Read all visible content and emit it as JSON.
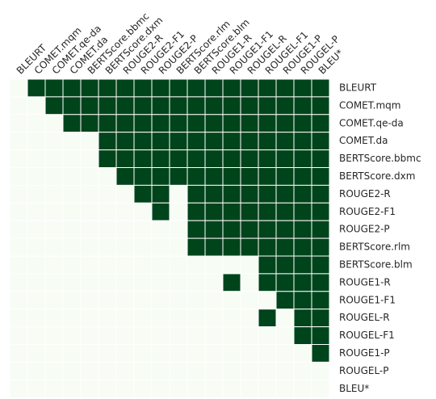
{
  "chart_data": {
    "type": "heatmap",
    "x_categories": [
      "BLEURT",
      "COMET.mqm",
      "COMET.qe-da",
      "COMET.da",
      "BERTScore.bbmc",
      "BERTScore.dxm",
      "ROUGE2-R",
      "ROUGE2-F1",
      "ROUGE2-P",
      "BERTScore.rlm",
      "BERTScore.blm",
      "ROUGE1-R",
      "ROUGE1-F1",
      "ROUGEL-R",
      "ROUGEL-F1",
      "ROUGE1-P",
      "ROUGEL-P",
      "BLEU*"
    ],
    "y_categories": [
      "BLEURT",
      "COMET.mqm",
      "COMET.qe-da",
      "COMET.da",
      "BERTScore.bbmc",
      "BERTScore.dxm",
      "ROUGE2-R",
      "ROUGE2-F1",
      "ROUGE2-P",
      "BERTScore.rlm",
      "BERTScore.blm",
      "ROUGE1-R",
      "ROUGE1-F1",
      "ROUGEL-R",
      "ROUGEL-F1",
      "ROUGE1-P",
      "ROUGEL-P",
      "BLEU*"
    ],
    "values": [
      [
        0,
        1,
        1,
        1,
        1,
        1,
        1,
        1,
        1,
        1,
        1,
        1,
        1,
        1,
        1,
        1,
        1,
        1
      ],
      [
        0,
        0,
        1,
        1,
        1,
        1,
        1,
        1,
        1,
        1,
        1,
        1,
        1,
        1,
        1,
        1,
        1,
        1
      ],
      [
        0,
        0,
        0,
        1,
        1,
        1,
        1,
        1,
        1,
        1,
        1,
        1,
        1,
        1,
        1,
        1,
        1,
        1
      ],
      [
        0,
        0,
        0,
        0,
        0,
        1,
        1,
        1,
        1,
        1,
        1,
        1,
        1,
        1,
        1,
        1,
        1,
        1
      ],
      [
        0,
        0,
        0,
        0,
        0,
        1,
        1,
        1,
        1,
        1,
        1,
        1,
        1,
        1,
        1,
        1,
        1,
        1
      ],
      [
        0,
        0,
        0,
        0,
        0,
        0,
        1,
        1,
        1,
        1,
        1,
        1,
        1,
        1,
        1,
        1,
        1,
        1
      ],
      [
        0,
        0,
        0,
        0,
        0,
        0,
        0,
        1,
        1,
        0,
        1,
        1,
        1,
        1,
        1,
        1,
        1,
        1
      ],
      [
        0,
        0,
        0,
        0,
        0,
        0,
        0,
        0,
        1,
        0,
        1,
        1,
        1,
        1,
        1,
        1,
        1,
        1
      ],
      [
        0,
        0,
        0,
        0,
        0,
        0,
        0,
        0,
        0,
        0,
        1,
        1,
        1,
        1,
        1,
        1,
        1,
        1
      ],
      [
        0,
        0,
        0,
        0,
        0,
        0,
        0,
        0,
        0,
        0,
        1,
        1,
        1,
        1,
        1,
        1,
        1,
        1
      ],
      [
        0,
        0,
        0,
        0,
        0,
        0,
        0,
        0,
        0,
        0,
        0,
        0,
        0,
        0,
        1,
        1,
        1,
        1
      ],
      [
        0,
        0,
        0,
        0,
        0,
        0,
        0,
        0,
        0,
        0,
        0,
        0,
        1,
        0,
        1,
        1,
        1,
        1
      ],
      [
        0,
        0,
        0,
        0,
        0,
        0,
        0,
        0,
        0,
        0,
        0,
        0,
        0,
        0,
        0,
        1,
        1,
        1
      ],
      [
        0,
        0,
        0,
        0,
        0,
        0,
        0,
        0,
        0,
        0,
        0,
        0,
        0,
        0,
        1,
        0,
        1,
        1
      ],
      [
        0,
        0,
        0,
        0,
        0,
        0,
        0,
        0,
        0,
        0,
        0,
        0,
        0,
        0,
        0,
        0,
        1,
        1
      ],
      [
        0,
        0,
        0,
        0,
        0,
        0,
        0,
        0,
        0,
        0,
        0,
        0,
        0,
        0,
        0,
        0,
        0,
        1
      ],
      [
        0,
        0,
        0,
        0,
        0,
        0,
        0,
        0,
        0,
        0,
        0,
        0,
        0,
        0,
        0,
        0,
        0,
        0
      ],
      [
        0,
        0,
        0,
        0,
        0,
        0,
        0,
        0,
        0,
        0,
        0,
        0,
        0,
        0,
        0,
        0,
        0,
        0
      ]
    ],
    "colors": [
      "#f7fcf5",
      "#00441b"
    ]
  }
}
